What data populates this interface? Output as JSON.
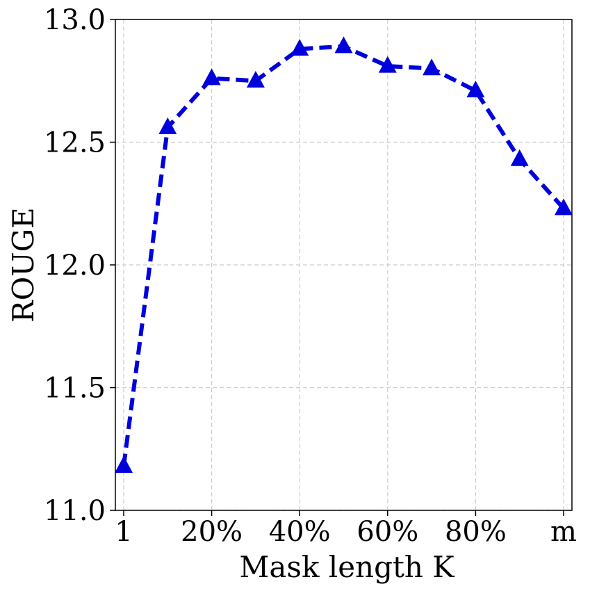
{
  "chart_data": {
    "type": "line",
    "title": "",
    "xlabel": "Mask length K",
    "ylabel": "ROUGE",
    "x_ticks": [
      "1",
      "20%",
      "40%",
      "60%",
      "80%",
      "m"
    ],
    "x_range": [
      0,
      10
    ],
    "ylim": [
      11.0,
      13.0
    ],
    "y_ticks": [
      "11.0",
      "11.5",
      "12.0",
      "12.5",
      "13.0"
    ],
    "grid": true,
    "legend": "none",
    "series": [
      {
        "color": "#0000dd",
        "line_style": "dashed",
        "marker": "triangle-up",
        "x": [
          0,
          1,
          2,
          3,
          4,
          5,
          6,
          7,
          8,
          9,
          10
        ],
        "values": [
          11.18,
          12.56,
          12.76,
          12.75,
          12.88,
          12.89,
          12.81,
          12.8,
          12.71,
          12.43,
          12.23
        ]
      }
    ]
  }
}
